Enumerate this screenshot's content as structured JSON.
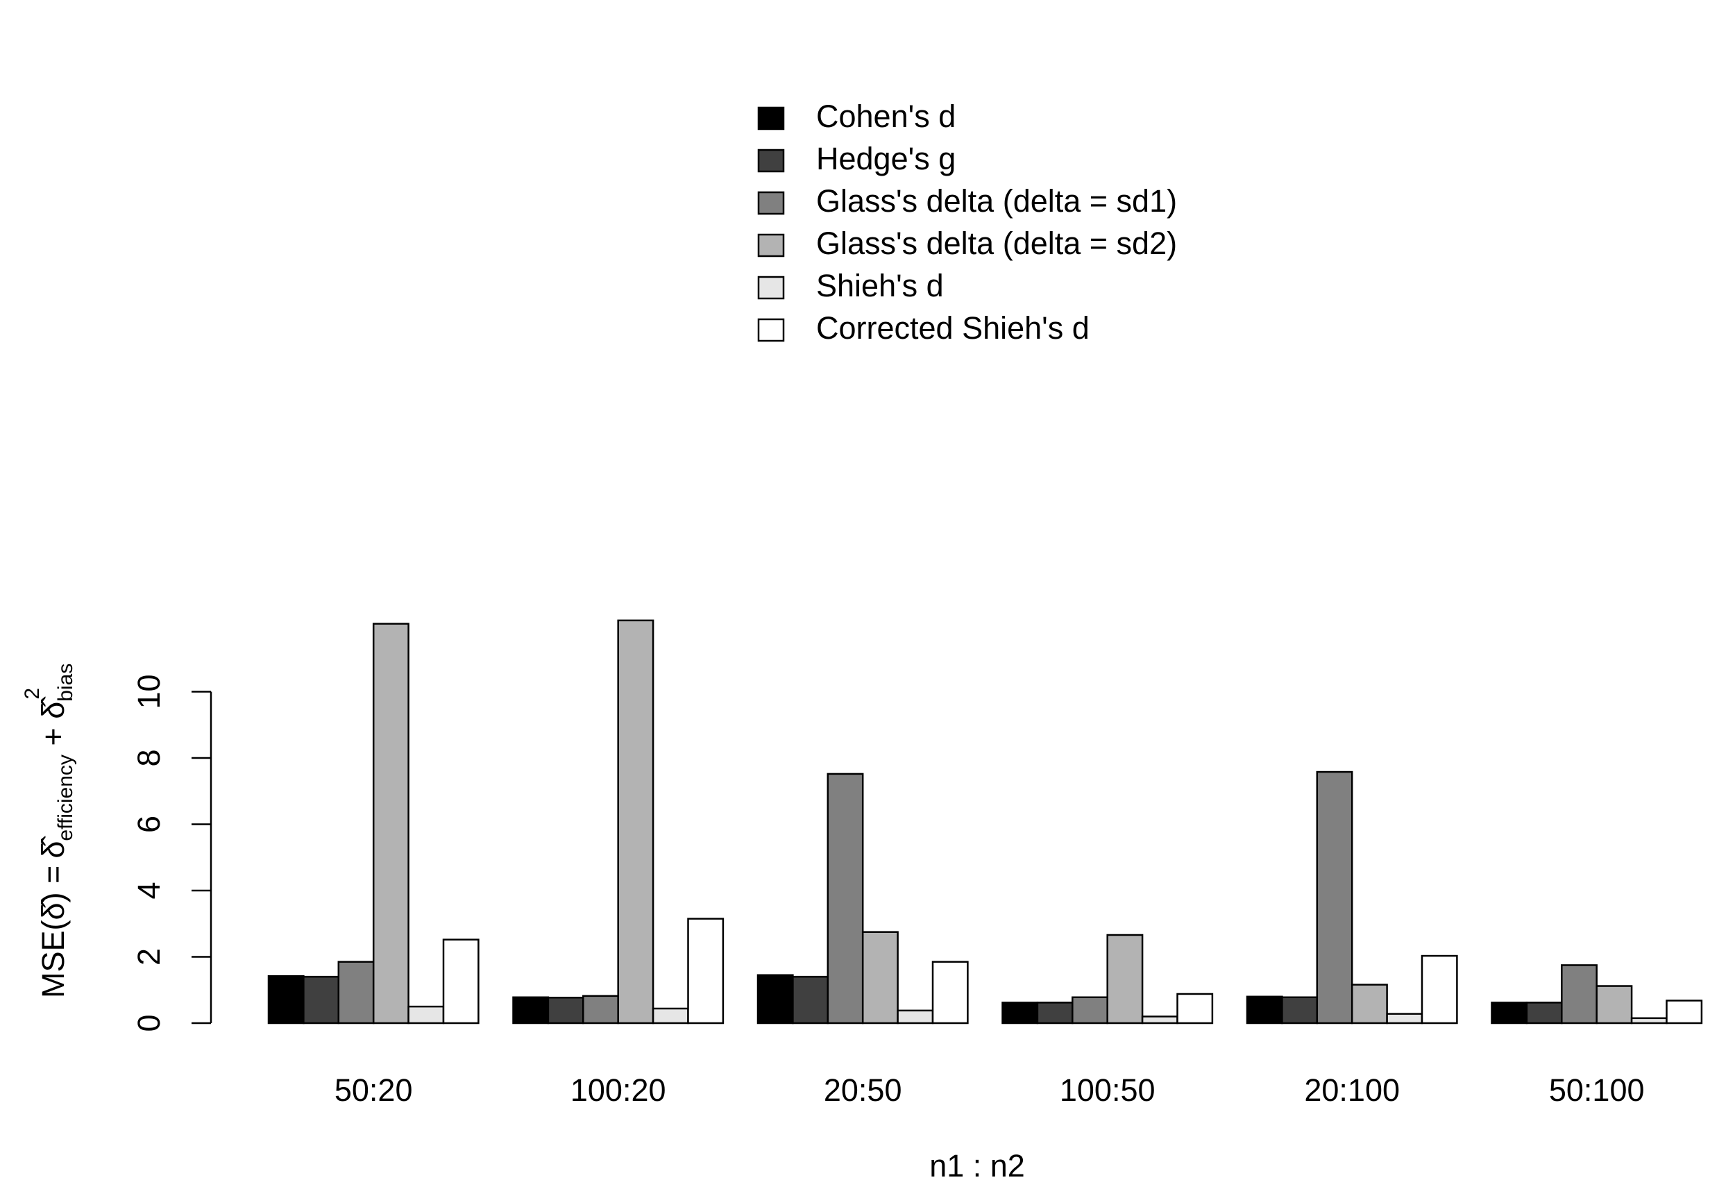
{
  "chart_data": {
    "type": "bar",
    "title": "",
    "xlabel": "n1 : n2",
    "ylabel": {
      "main": "MSE(",
      "delta_hat": "δ̂",
      "mid": ") =",
      "sub1": "efficiency",
      "plus": " + ",
      "sub2": "bias",
      "sup2": "2"
    },
    "ylim": [
      0,
      12
    ],
    "yticks": [
      "0",
      "2",
      "4",
      "6",
      "8",
      "10"
    ],
    "grid": false,
    "legend_position": "top",
    "categories": [
      "50:20",
      "100:20",
      "20:50",
      "100:50",
      "20:100",
      "50:100"
    ],
    "series": [
      {
        "name": "Cohen's d",
        "color": "#000000",
        "values": [
          1.42,
          0.78,
          1.45,
          0.62,
          0.8,
          0.62
        ]
      },
      {
        "name": "Hedge's g",
        "color": "#404040",
        "values": [
          1.4,
          0.77,
          1.4,
          0.62,
          0.78,
          0.62
        ]
      },
      {
        "name": "Glass's delta (delta = sd1)",
        "color": "#808080",
        "values": [
          1.85,
          0.82,
          7.52,
          0.78,
          7.58,
          1.75
        ]
      },
      {
        "name": "Glass's delta (delta = sd2)",
        "color": "#b3b3b3",
        "values": [
          12.05,
          12.15,
          2.75,
          2.66,
          1.16,
          1.12
        ]
      },
      {
        "name": "Shieh's d",
        "color": "#e6e6e6",
        "values": [
          0.5,
          0.44,
          0.38,
          0.2,
          0.28,
          0.15
        ]
      },
      {
        "name": "Corrected Shieh's d",
        "color": "#ffffff",
        "values": [
          2.52,
          3.15,
          1.85,
          0.88,
          2.03,
          0.68
        ]
      }
    ]
  }
}
